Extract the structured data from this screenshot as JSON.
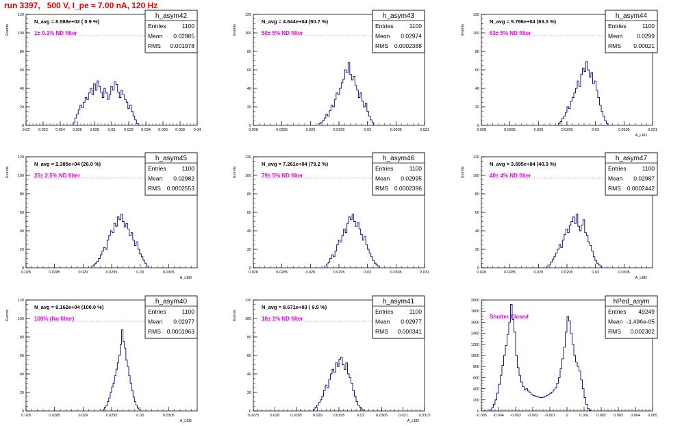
{
  "page": {
    "title": "run 3397,   500 V, I_pe ≈ 7.00 nA, 120 Hz",
    "colors": {
      "title": "#e00000",
      "line": "#00007a",
      "annotation": "#e000e0",
      "axis": "#000000"
    }
  },
  "chart_data": [
    {
      "type": "histogram",
      "name": "h_asym42",
      "ylabel": "Events",
      "xlabel": "",
      "navg": "N_avg = 8.588e+02 ( 0.9 %)",
      "filter": "1± 0.1% ND filter",
      "stats": [
        [
          "Entries",
          "1100"
        ],
        [
          "Mean",
          "0.02985"
        ],
        [
          "RMS",
          "0.001978"
        ]
      ],
      "xlim": [
        0.02,
        0.04
      ],
      "ylim": [
        0,
        120
      ],
      "xticks": [
        0.02,
        0.022,
        0.024,
        0.026,
        0.028,
        0.03,
        0.032,
        0.034,
        0.036,
        0.038,
        0.04
      ],
      "xticklabels": [
        "0.02",
        "0.022",
        "0.024",
        "0.026",
        "0.028",
        "0.03",
        "0.032",
        "0.034",
        "0.036",
        "0.038",
        "0.04"
      ],
      "yticks": [
        0,
        20,
        40,
        60,
        80,
        100,
        120
      ],
      "bins": {
        "start": 0.0255,
        "width": 0.0002,
        "values": [
          3,
          8,
          12,
          17,
          22,
          19,
          25,
          30,
          28,
          35,
          40,
          33,
          45,
          38,
          48,
          42,
          36,
          30,
          40,
          35,
          28,
          33,
          42,
          38,
          47,
          44,
          36,
          30,
          38,
          33,
          28,
          25,
          18,
          22,
          15,
          10,
          6,
          2
        ]
      }
    },
    {
      "type": "histogram",
      "name": "h_asym43",
      "ylabel": "Events",
      "xlabel": "",
      "navg": "N_avg = 4.644e+04 (50.7 %)",
      "filter": "50± 5% ND filter",
      "stats": [
        [
          "Entries",
          "1100"
        ],
        [
          "Mean",
          "0.02974"
        ],
        [
          "RMS",
          "0.0002388"
        ]
      ],
      "xlim": [
        0.028,
        0.031
      ],
      "ylim": [
        0,
        120
      ],
      "xticks": [
        0.028,
        0.0285,
        0.029,
        0.0295,
        0.03,
        0.0305,
        0.031
      ],
      "xticklabels": [
        "0.028",
        "0.0285",
        "0.029",
        "0.0295",
        "0.03",
        "0.0305",
        "0.031"
      ],
      "yticks": [
        0,
        20,
        40,
        60,
        80,
        100,
        120
      ],
      "bins": {
        "start": 0.02915,
        "width": 3e-05,
        "values": [
          2,
          3,
          5,
          8,
          12,
          10,
          16,
          22,
          20,
          28,
          35,
          33,
          40,
          46,
          50,
          60,
          57,
          68,
          55,
          49,
          53,
          43,
          38,
          30,
          35,
          26,
          20,
          24,
          15,
          10,
          6,
          3
        ]
      }
    },
    {
      "type": "histogram",
      "name": "h_asym44",
      "ylabel": "Events",
      "xlabel": "A_LED",
      "navg": "N_avg = 5.796e+04 (63.3 %)",
      "filter": "63± 5% ND filter",
      "stats": [
        [
          "Entries",
          "1100"
        ],
        [
          "Mean",
          "0.0299"
        ],
        [
          "RMS",
          "0.00021"
        ]
      ],
      "xlim": [
        0.028,
        0.031
      ],
      "ylim": [
        0,
        120
      ],
      "xticks": [
        0.028,
        0.0285,
        0.029,
        0.0295,
        0.03,
        0.0305,
        0.031
      ],
      "xticklabels": [
        "0.028",
        "0.0285",
        "0.029",
        "0.0295",
        "0.03",
        "0.0305",
        "0.031"
      ],
      "yticks": [
        0,
        20,
        40,
        60,
        80,
        100,
        120
      ],
      "bins": {
        "start": 0.02935,
        "width": 3e-05,
        "values": [
          2,
          4,
          7,
          10,
          14,
          20,
          18,
          26,
          30,
          35,
          40,
          48,
          42,
          55,
          62,
          58,
          69,
          60,
          52,
          57,
          45,
          48,
          38,
          30,
          22,
          15,
          10,
          5,
          2
        ]
      }
    },
    {
      "type": "histogram",
      "name": "h_asym45",
      "ylabel": "Events",
      "xlabel": "A_LED",
      "navg": "N_avg = 2.385e+04 (26.0 %)",
      "filter": "25± 2.5% ND filter",
      "stats": [
        [
          "Entries",
          "1100"
        ],
        [
          "Mean",
          "0.02982"
        ],
        [
          "RMS",
          "0.0002553"
        ]
      ],
      "xlim": [
        0.028,
        0.031
      ],
      "ylim": [
        0,
        120
      ],
      "xticks": [
        0.028,
        0.0285,
        0.029,
        0.0295,
        0.03,
        0.0305
      ],
      "xticklabels": [
        "0.028",
        "0.0285",
        "0.029",
        "0.0295",
        "0.03",
        "0.0305"
      ],
      "yticks": [
        0,
        20,
        40,
        60,
        80,
        100,
        120
      ],
      "bins": {
        "start": 0.02915,
        "width": 3e-05,
        "values": [
          2,
          3,
          5,
          7,
          10,
          14,
          18,
          22,
          20,
          30,
          35,
          40,
          38,
          48,
          45,
          55,
          52,
          58,
          50,
          44,
          48,
          42,
          35,
          38,
          30,
          24,
          28,
          20,
          15,
          12,
          8,
          5,
          2
        ]
      }
    },
    {
      "type": "histogram",
      "name": "h_asym46",
      "ylabel": "Events",
      "xlabel": "",
      "navg": "N_avg = 7.261e+04 (79.2 %)",
      "filter": "79± 5% ND filter",
      "stats": [
        [
          "Entries",
          "1100"
        ],
        [
          "Mean",
          "0.02995"
        ],
        [
          "RMS",
          "0.0002396"
        ]
      ],
      "xlim": [
        0.028,
        0.031
      ],
      "ylim": [
        0,
        120
      ],
      "xticks": [
        0.028,
        0.0285,
        0.029,
        0.0295,
        0.03,
        0.0305,
        0.031
      ],
      "xticklabels": [
        "0.028",
        "0.0285",
        "0.029",
        "0.0295",
        "0.03",
        "0.0305",
        "0.031"
      ],
      "yticks": [
        0,
        20,
        40,
        60,
        80,
        100,
        120
      ],
      "bins": {
        "start": 0.02925,
        "width": 3e-05,
        "values": [
          2,
          4,
          6,
          10,
          14,
          12,
          18,
          25,
          30,
          28,
          35,
          42,
          38,
          48,
          55,
          52,
          58,
          50,
          45,
          49,
          42,
          36,
          30,
          34,
          25,
          20,
          16,
          12,
          8,
          5,
          3,
          2
        ]
      }
    },
    {
      "type": "histogram",
      "name": "h_asym47",
      "ylabel": "Events",
      "xlabel": "A_LED",
      "navg": "N_avg = 3.695e+04 (40.3 %)",
      "filter": "40± 4% ND filter",
      "stats": [
        [
          "Entries",
          "1100"
        ],
        [
          "Mean",
          "0.02987"
        ],
        [
          "RMS",
          "0.0002442"
        ]
      ],
      "xlim": [
        0.028,
        0.031
      ],
      "ylim": [
        0,
        120
      ],
      "xticks": [
        0.028,
        0.0285,
        0.029,
        0.0295,
        0.03,
        0.0305
      ],
      "xticklabels": [
        "0.028",
        "0.0285",
        "0.029",
        "0.0295",
        "0.03",
        "0.0305"
      ],
      "yticks": [
        0,
        20,
        40,
        60,
        80,
        100,
        120
      ],
      "bins": {
        "start": 0.02915,
        "width": 3e-05,
        "values": [
          2,
          3,
          6,
          9,
          12,
          16,
          20,
          25,
          22,
          30,
          36,
          42,
          38,
          46,
          50,
          55,
          48,
          58,
          45,
          40,
          46,
          52,
          38,
          35,
          28,
          24,
          18,
          12,
          8,
          5,
          3,
          2
        ]
      }
    },
    {
      "type": "histogram",
      "name": "h_asym40",
      "ylabel": "Events",
      "xlabel": "A_LED",
      "navg": "N_avg = 9.162e+04 (100.0 %)",
      "filter": "100% (No filter)",
      "stats": [
        [
          "Entries",
          "1100"
        ],
        [
          "Mean",
          "0.02977"
        ],
        [
          "RMS",
          "0.0001963"
        ]
      ],
      "xlim": [
        0.028,
        0.031
      ],
      "ylim": [
        0,
        120
      ],
      "xticks": [
        0.028,
        0.0285,
        0.029,
        0.0295,
        0.03,
        0.0305
      ],
      "xticklabels": [
        "0.028",
        "0.0285",
        "0.029",
        "0.0295",
        "0.03",
        "0.0305"
      ],
      "yticks": [
        0,
        20,
        40,
        60,
        80,
        100,
        120
      ],
      "bins": {
        "start": 0.02935,
        "width": 2.5e-05,
        "values": [
          2,
          4,
          6,
          10,
          14,
          20,
          26,
          30,
          38,
          45,
          52,
          60,
          72,
          88,
          75,
          68,
          55,
          48,
          38,
          30,
          22,
          15,
          10,
          6,
          3,
          2
        ]
      }
    },
    {
      "type": "histogram",
      "name": "h_asym41",
      "ylabel": "Events",
      "xlabel": "A_LED",
      "navg": "N_avg = 8.671e+03 ( 9.5 %)",
      "filter": "10± 1% ND filter",
      "stats": [
        [
          "Entries",
          "1100"
        ],
        [
          "Mean",
          "0.02977"
        ],
        [
          "RMS",
          "0.000341"
        ]
      ],
      "xlim": [
        0.0275,
        0.0315
      ],
      "ylim": [
        0,
        120
      ],
      "xticks": [
        0.0275,
        0.028,
        0.0285,
        0.029,
        0.0295,
        0.03,
        0.0305,
        0.031,
        0.0315
      ],
      "xticklabels": [
        "0.0275",
        "0.028",
        "0.0285",
        "0.029",
        "0.0295",
        "0.03",
        "0.0305",
        "0.031",
        "0.0315"
      ],
      "yticks": [
        0,
        20,
        40,
        60,
        80,
        100,
        120
      ],
      "bins": {
        "start": 0.0289,
        "width": 4e-05,
        "values": [
          2,
          4,
          6,
          9,
          12,
          16,
          22,
          28,
          25,
          34,
          40,
          45,
          42,
          52,
          48,
          56,
          58,
          50,
          45,
          52,
          40,
          36,
          30,
          22,
          16,
          10,
          6,
          4,
          2
        ]
      }
    },
    {
      "type": "histogram",
      "name": "hPed_asym",
      "ylabel": "",
      "xlabel": "",
      "navg": "",
      "filter": "Shutter Closed",
      "stats": [
        [
          "Entries",
          "49249"
        ],
        [
          "Mean",
          "-1.496e-05"
        ],
        [
          "RMS",
          "0.002302"
        ]
      ],
      "xlim": [
        -0.005,
        0.005
      ],
      "ylim": [
        0,
        2000
      ],
      "xticks": [
        -0.005,
        -0.004,
        -0.003,
        -0.002,
        -0.001,
        0,
        0.001,
        0.002,
        0.003,
        0.004,
        0.005
      ],
      "xticklabels": [
        "-0.005",
        "-0.004",
        "-0.003",
        "-0.002",
        "-0.001",
        "0",
        "0.001",
        "0.002",
        "0.003",
        "0.004",
        "0.005"
      ],
      "yticks": [
        0,
        200,
        400,
        600,
        800,
        1000,
        1200,
        1400,
        1600,
        1800,
        2000
      ],
      "bins": {
        "start": -0.0045,
        "width": 0.0001,
        "values": [
          20,
          60,
          120,
          200,
          320,
          480,
          640,
          820,
          1000,
          1180,
          1380,
          1600,
          1920,
          1650,
          1420,
          1000,
          780,
          640,
          520,
          440,
          380,
          400,
          360,
          330,
          300,
          280,
          270,
          260,
          250,
          240,
          240,
          250,
          260,
          280,
          300,
          320,
          340,
          380,
          420,
          500,
          600,
          760,
          940,
          1150,
          1420,
          1700,
          1620,
          1400,
          1200,
          1000,
          880,
          800,
          720,
          560,
          400,
          240,
          120,
          40,
          10
        ]
      }
    }
  ]
}
